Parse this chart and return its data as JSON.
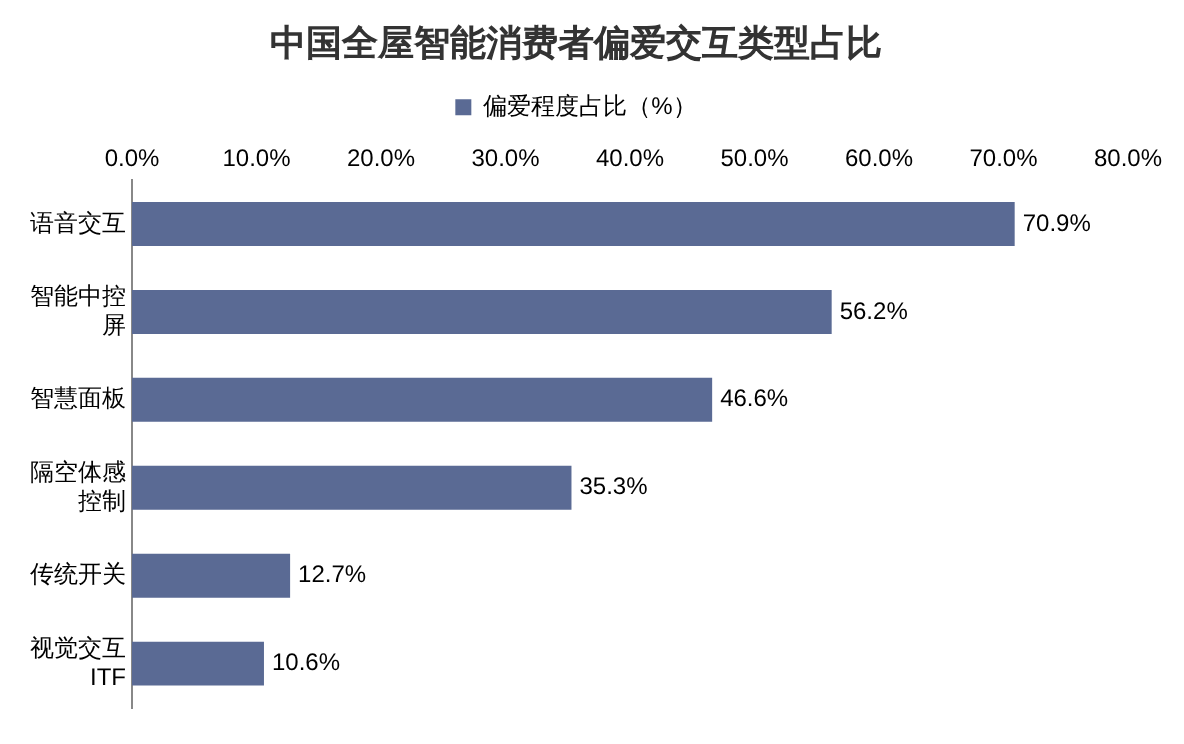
{
  "chart_data": {
    "type": "bar",
    "orientation": "horizontal",
    "title": "中国全屋智能消费者偏爱交互类型占比",
    "categories": [
      "语音交互",
      "智能中控屏",
      "智慧面板",
      "隔空体感控制",
      "传统开关",
      "视觉交互ITF"
    ],
    "series": [
      {
        "name": "偏爱程度占比（%）",
        "color": "#5a6a94",
        "values": [
          70.9,
          56.2,
          46.6,
          35.3,
          12.7,
          10.6
        ],
        "value_labels": [
          "70.9%",
          "56.2%",
          "46.6%",
          "35.3%",
          "12.7%",
          "10.6%"
        ]
      }
    ],
    "xlim": [
      0,
      80
    ],
    "xticks": [
      {
        "value": 0,
        "label": "0.0%"
      },
      {
        "value": 10,
        "label": "10.0%"
      },
      {
        "value": 20,
        "label": "20.0%"
      },
      {
        "value": 30,
        "label": "30.0%"
      },
      {
        "value": 40,
        "label": "40.0%"
      },
      {
        "value": 50,
        "label": "50.0%"
      },
      {
        "value": 60,
        "label": "60.0%"
      },
      {
        "value": 70,
        "label": "70.0%"
      },
      {
        "value": 80,
        "label": "80.0%"
      }
    ],
    "grid": false,
    "legend": "top"
  }
}
